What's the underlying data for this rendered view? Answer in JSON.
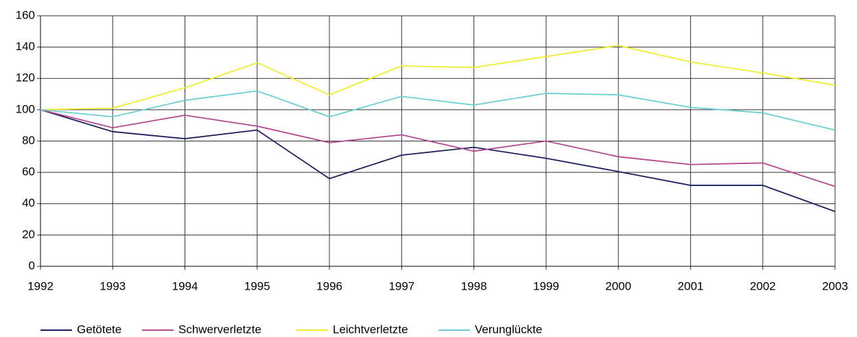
{
  "chart_data": {
    "type": "line",
    "x": [
      1992,
      1993,
      1994,
      1995,
      1996,
      1997,
      1998,
      1999,
      2000,
      2001,
      2002,
      2003
    ],
    "series": [
      {
        "name": "Getötete",
        "color": "#1f1f5f",
        "values": [
          100,
          86,
          81.5,
          87,
          56,
          71,
          76,
          69,
          60.5,
          51.7,
          51.7,
          35
        ]
      },
      {
        "name": "Schwerverletzte",
        "color": "#b5488f",
        "values": [
          100,
          88.5,
          96.5,
          89.5,
          79,
          84,
          73.5,
          80,
          70,
          65,
          66,
          51
        ]
      },
      {
        "name": "Leichtverletzte",
        "color": "#f0ec30",
        "values": [
          100,
          101,
          114,
          130,
          109.5,
          128,
          127,
          134,
          141,
          130.5,
          123.5,
          115.7
        ]
      },
      {
        "name": "Verunglückte",
        "color": "#6ccfd5",
        "values": [
          100,
          95.5,
          106,
          112,
          95.5,
          108.5,
          103,
          110.5,
          109.5,
          101.5,
          98,
          87
        ]
      }
    ],
    "xlim": [
      1992,
      2003
    ],
    "xticks": [
      1992,
      1993,
      1994,
      1995,
      1996,
      1997,
      1998,
      1999,
      2000,
      2001,
      2002,
      2003
    ],
    "ylim": [
      0,
      160
    ],
    "yticks": [
      0,
      20,
      40,
      60,
      80,
      100,
      120,
      140,
      160
    ],
    "grid": true,
    "legend": "bottom"
  }
}
